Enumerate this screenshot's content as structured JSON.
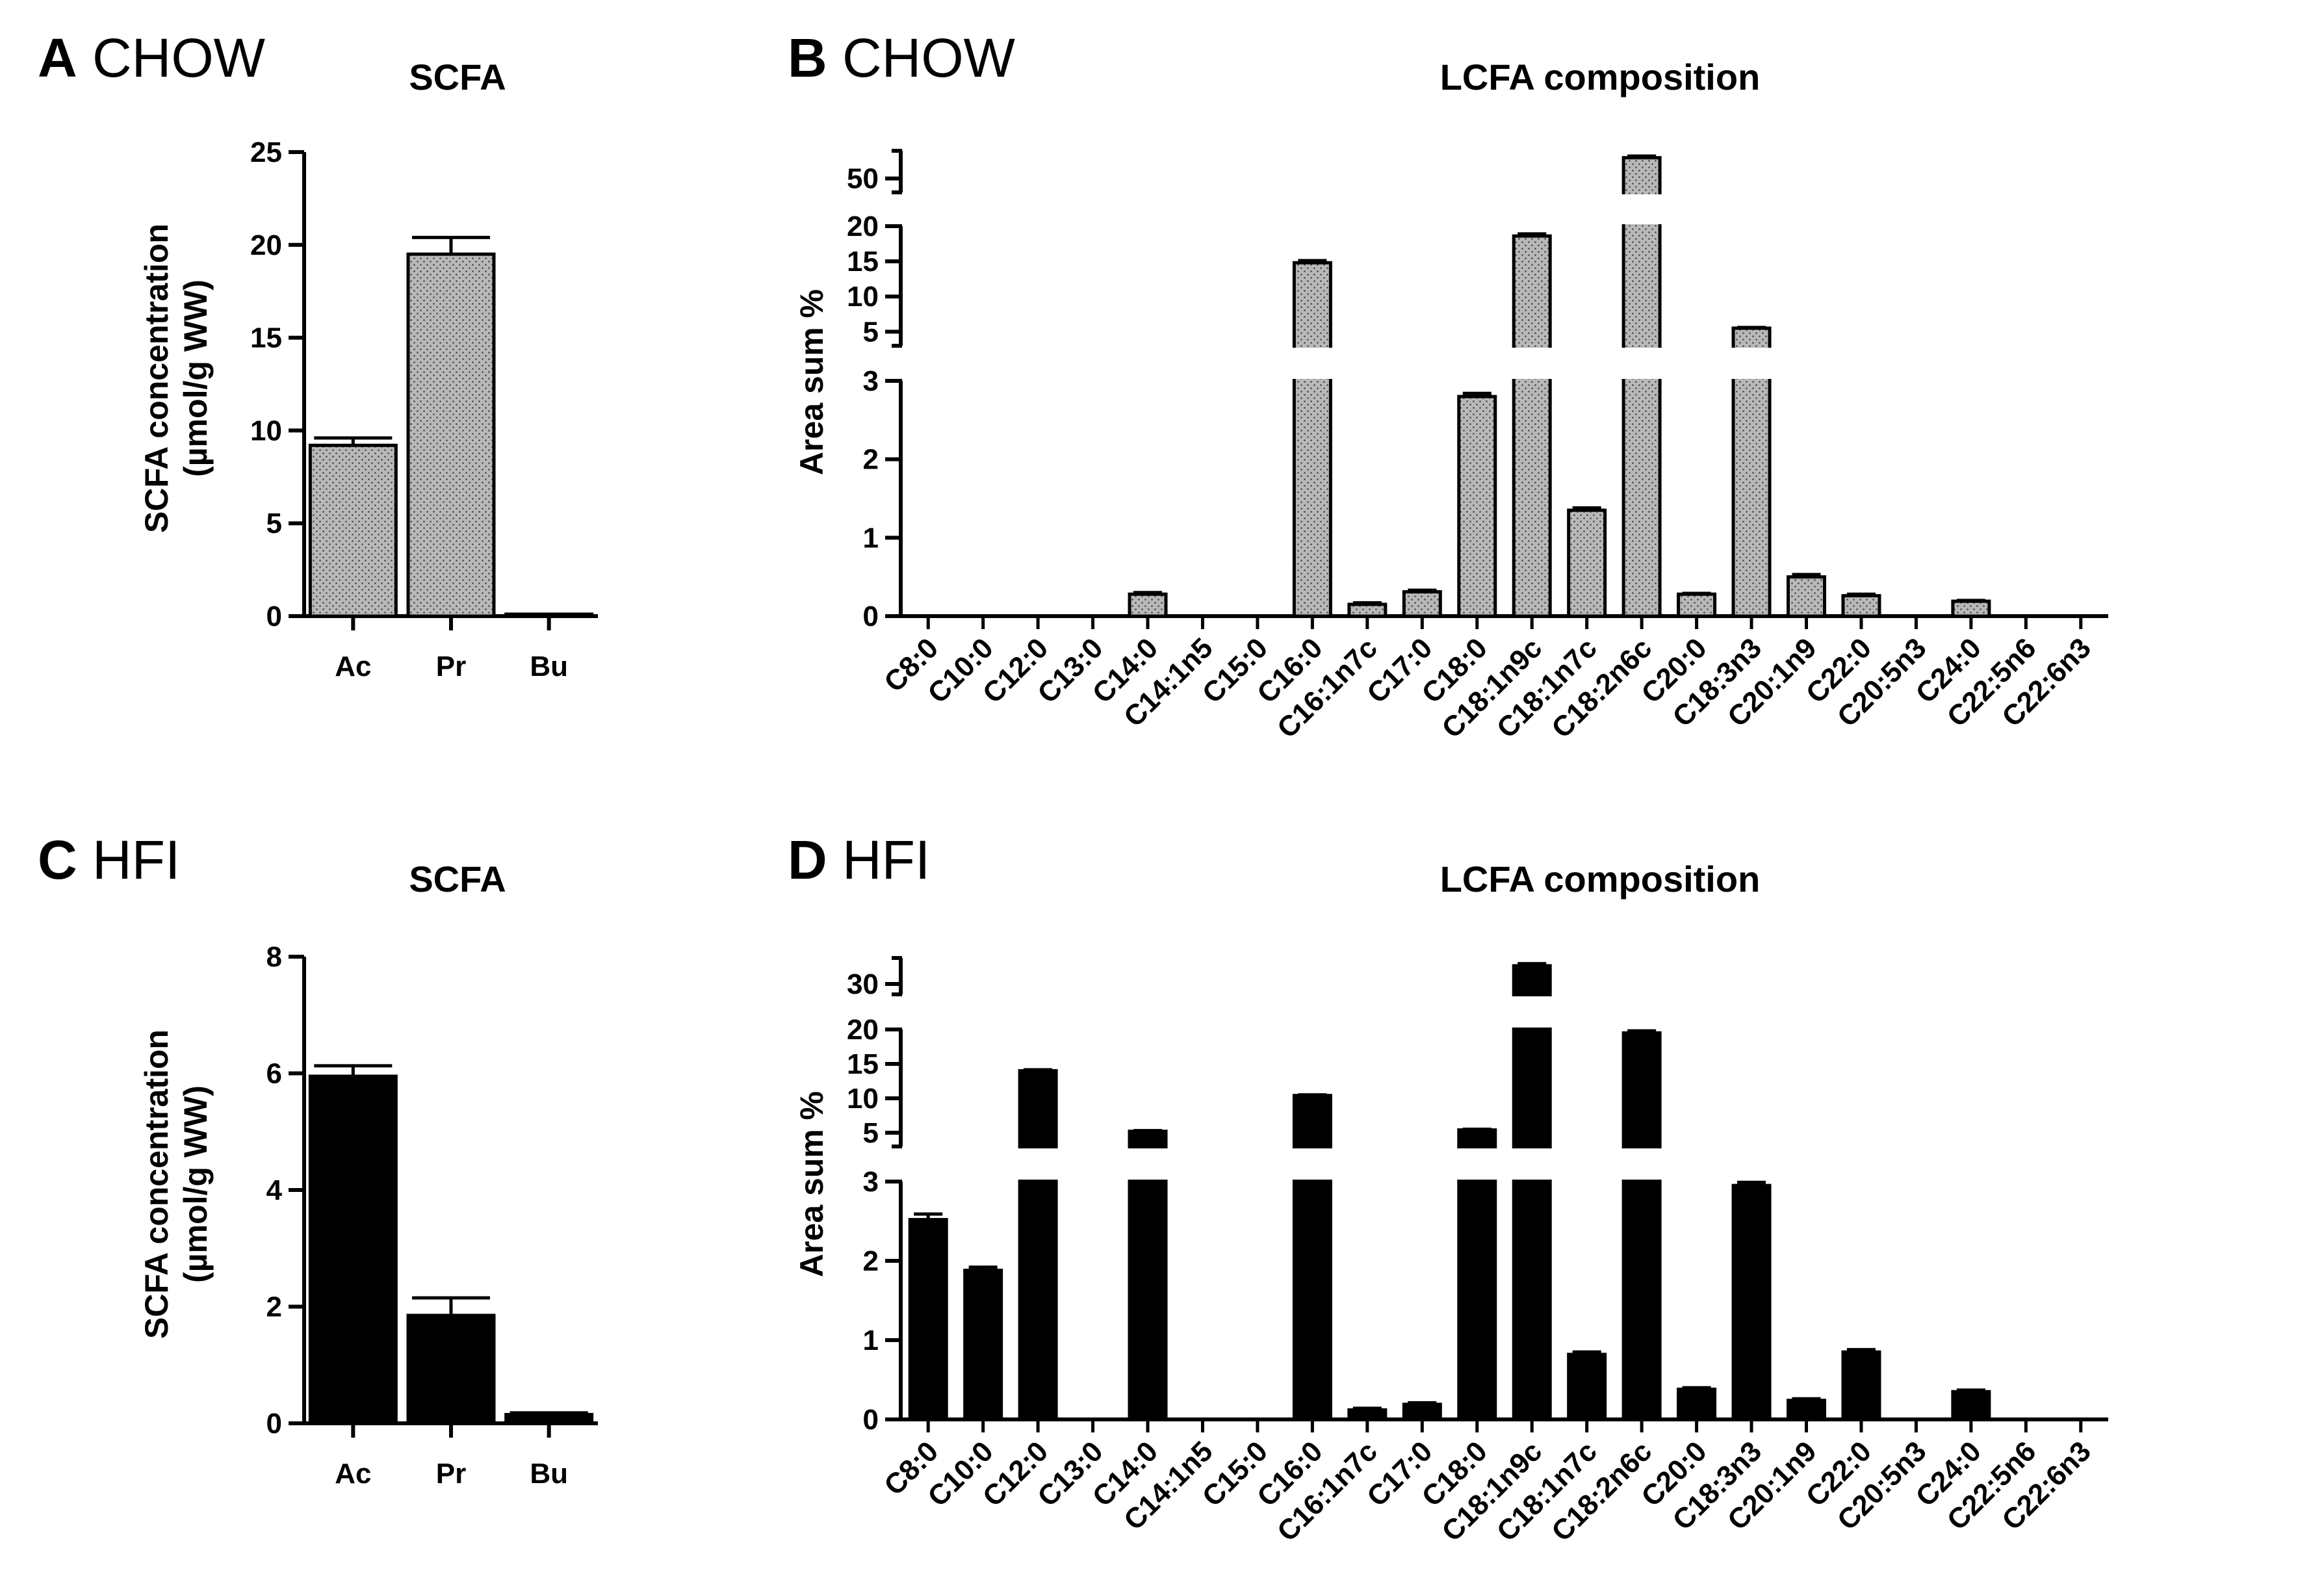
{
  "panels": {
    "a": {
      "letter": "A",
      "diet": "CHOW"
    },
    "b": {
      "letter": "B",
      "diet": "CHOW"
    },
    "c": {
      "letter": "C",
      "diet": "HFI"
    },
    "d": {
      "letter": "D",
      "diet": "HFI"
    }
  },
  "colors": {
    "chow_fill": "#b8b8b8",
    "hfi_fill": "#000000",
    "axis": "#000000"
  },
  "chart_data": [
    {
      "id": "A",
      "type": "bar",
      "title": "SCFA",
      "ylabel_line1": "SCFA concentration",
      "ylabel_line2": "(µmol/g WW)",
      "xlabel": "",
      "categories": [
        "Ac",
        "Pr",
        "Bu"
      ],
      "values": [
        9.2,
        19.5,
        0.05
      ],
      "errors": [
        0.4,
        0.9,
        0.05
      ],
      "ylim": [
        0,
        25
      ],
      "yticks": [
        0,
        5,
        10,
        15,
        20,
        25
      ],
      "grid": false
    },
    {
      "id": "B",
      "type": "bar",
      "title": "LCFA composition",
      "ylabel": "Area sum %",
      "xlabel": "",
      "broken_axis": [
        {
          "range": [
            0,
            3
          ],
          "ticks": [
            0,
            1,
            2,
            3
          ]
        },
        {
          "range": [
            3,
            20
          ],
          "ticks": [
            5,
            10,
            15,
            20
          ]
        },
        {
          "range": [
            45,
            60
          ],
          "ticks": [
            50
          ]
        }
      ],
      "categories": [
        "C8:0",
        "C10:0",
        "C12:0",
        "C13:0",
        "C14:0",
        "C14:1n5",
        "C15:0",
        "C16:0",
        "C16:1n7c",
        "C17:0",
        "C18:0",
        "C18:1n9c",
        "C18:1n7c",
        "C18:2n6c",
        "C20:0",
        "C18:3n3",
        "C20:1n9",
        "C22:0",
        "C20:5n3",
        "C24:0",
        "C22:5n6",
        "C22:6n3"
      ],
      "values": [
        0,
        0,
        0,
        0,
        0.28,
        0,
        0,
        14.8,
        0.15,
        0.31,
        2.8,
        18.6,
        1.35,
        57.5,
        0.28,
        5.5,
        0.5,
        0.26,
        0,
        0.19,
        0,
        0
      ],
      "errors": [
        0,
        0,
        0,
        0,
        0.02,
        0,
        0,
        0.3,
        0.02,
        0.02,
        0.04,
        0.3,
        0.03,
        0.6,
        0.01,
        0.1,
        0.03,
        0.02,
        0,
        0.01,
        0,
        0
      ],
      "grid": false
    },
    {
      "id": "C",
      "type": "bar",
      "title": "SCFA",
      "ylabel_line1": "SCFA concentration",
      "ylabel_line2": "(µmol/g WW)",
      "xlabel": "",
      "categories": [
        "Ac",
        "Pr",
        "Bu"
      ],
      "values": [
        5.95,
        1.85,
        0.15
      ],
      "errors": [
        0.18,
        0.3,
        0.03
      ],
      "ylim": [
        0,
        8
      ],
      "yticks": [
        0,
        2,
        4,
        6,
        8
      ],
      "grid": false
    },
    {
      "id": "D",
      "type": "bar",
      "title": "LCFA composition",
      "ylabel": "Area sum %",
      "xlabel": "",
      "broken_axis": [
        {
          "range": [
            0,
            3
          ],
          "ticks": [
            0,
            1,
            2,
            3
          ]
        },
        {
          "range": [
            3,
            20
          ],
          "ticks": [
            5,
            10,
            15,
            20
          ]
        },
        {
          "range": [
            28,
            35
          ],
          "ticks": [
            30
          ]
        }
      ],
      "categories": [
        "C8:0",
        "C10:0",
        "C12:0",
        "C13:0",
        "C14:0",
        "C14:1n5",
        "C15:0",
        "C16:0",
        "C16:1n7c",
        "C17:0",
        "C18:0",
        "C18:1n9c",
        "C18:1n7c",
        "C18:2n6c",
        "C20:0",
        "C18:3n3",
        "C20:1n9",
        "C22:0",
        "C20:5n3",
        "C24:0",
        "C22:5n6",
        "C22:6n3"
      ],
      "values": [
        2.52,
        1.88,
        14.0,
        0,
        5.2,
        0,
        0,
        10.4,
        0.12,
        0.19,
        5.4,
        33.5,
        0.82,
        19.5,
        0.38,
        2.95,
        0.24,
        0.85,
        0,
        0.35,
        0,
        0
      ],
      "errors": [
        0.07,
        0.04,
        0.15,
        0,
        0.1,
        0,
        0,
        0.1,
        0.02,
        0.02,
        0.1,
        0.4,
        0.03,
        0.3,
        0.02,
        0.04,
        0.02,
        0.03,
        0,
        0.02,
        0,
        0
      ],
      "grid": false
    }
  ]
}
